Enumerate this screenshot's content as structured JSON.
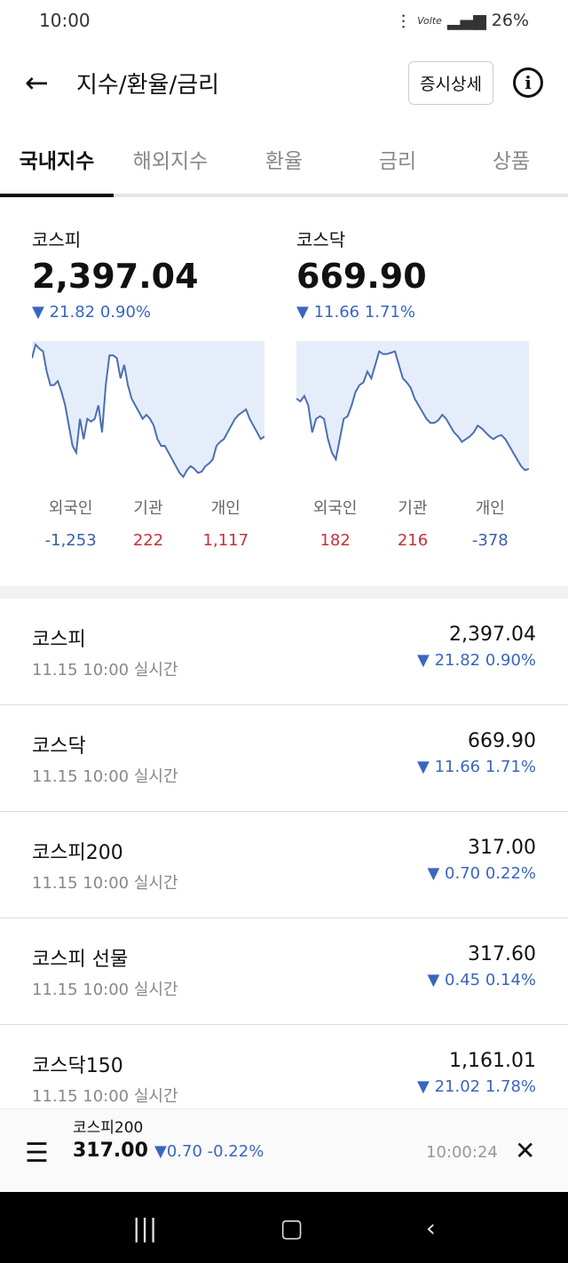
{
  "status": {
    "time": "10:00",
    "battery": "26%",
    "network": "Volte"
  },
  "header": {
    "title": "지수/환율/금리",
    "detail_button": "증시상세"
  },
  "tabs": [
    "국내지수",
    "해외지수",
    "환율",
    "금리",
    "상품"
  ],
  "summary": [
    {
      "name": "코스피",
      "value": "2,397.04",
      "change": "▼ 21.82  0.90%",
      "investors": [
        {
          "label": "외국인",
          "value": "-1,253",
          "dir": "dn"
        },
        {
          "label": "기관",
          "value": "222",
          "dir": "up"
        },
        {
          "label": "개인",
          "value": "1,117",
          "dir": "up"
        }
      ],
      "spark": [
        90,
        100,
        97,
        95,
        80,
        70,
        70,
        73,
        65,
        55,
        40,
        25,
        20,
        45,
        30,
        45,
        43,
        45,
        55,
        35,
        70,
        92,
        92,
        90,
        75,
        85,
        70,
        60,
        55,
        50,
        45,
        48,
        45,
        40,
        30,
        25,
        25,
        20,
        15,
        10,
        5,
        2,
        7,
        10,
        8,
        5,
        6,
        10,
        12,
        15,
        25,
        28,
        30,
        35,
        40,
        45,
        48,
        50,
        52,
        45,
        40,
        35,
        30,
        32
      ]
    },
    {
      "name": "코스닥",
      "value": "669.90",
      "change": "▼ 11.66  1.71%",
      "investors": [
        {
          "label": "외국인",
          "value": "182",
          "dir": "up"
        },
        {
          "label": "기관",
          "value": "216",
          "dir": "up"
        },
        {
          "label": "개인",
          "value": "-378",
          "dir": "dn"
        }
      ],
      "spark": [
        60,
        58,
        62,
        55,
        35,
        45,
        47,
        45,
        30,
        20,
        15,
        30,
        45,
        47,
        55,
        65,
        70,
        72,
        80,
        75,
        85,
        95,
        93,
        93,
        94,
        95,
        85,
        75,
        72,
        68,
        60,
        55,
        50,
        45,
        42,
        42,
        44,
        48,
        45,
        40,
        35,
        32,
        28,
        30,
        32,
        35,
        40,
        38,
        35,
        32,
        30,
        32,
        33,
        30,
        25,
        20,
        15,
        10,
        7,
        8
      ]
    }
  ],
  "list": [
    {
      "name": "코스피",
      "sub": "11.15 10:00 실시간",
      "price": "2,397.04",
      "change": "▼ 21.82   0.90%"
    },
    {
      "name": "코스닥",
      "sub": "11.15 10:00 실시간",
      "price": "669.90",
      "change": "▼ 11.66   1.71%"
    },
    {
      "name": "코스피200",
      "sub": "11.15 10:00 실시간",
      "price": "317.00",
      "change": "▼   0.70   0.22%"
    },
    {
      "name": "코스피 선물",
      "sub": "11.15 10:00 실시간",
      "price": "317.60",
      "change": "▼   0.45   0.14%"
    },
    {
      "name": "코스닥150",
      "sub": "11.15 10:00 실시간",
      "price": "1,161.01",
      "change": "▼ 21.02   1.78%"
    }
  ],
  "mini": {
    "name": "코스피200",
    "price": "317.00",
    "change": "▼0.70 -0.22%",
    "time": "10:00:24"
  },
  "colors": {
    "down": "#3a66c0",
    "up": "#c8303a",
    "line": "#4a6fb5",
    "fill": "#e6edfa"
  }
}
